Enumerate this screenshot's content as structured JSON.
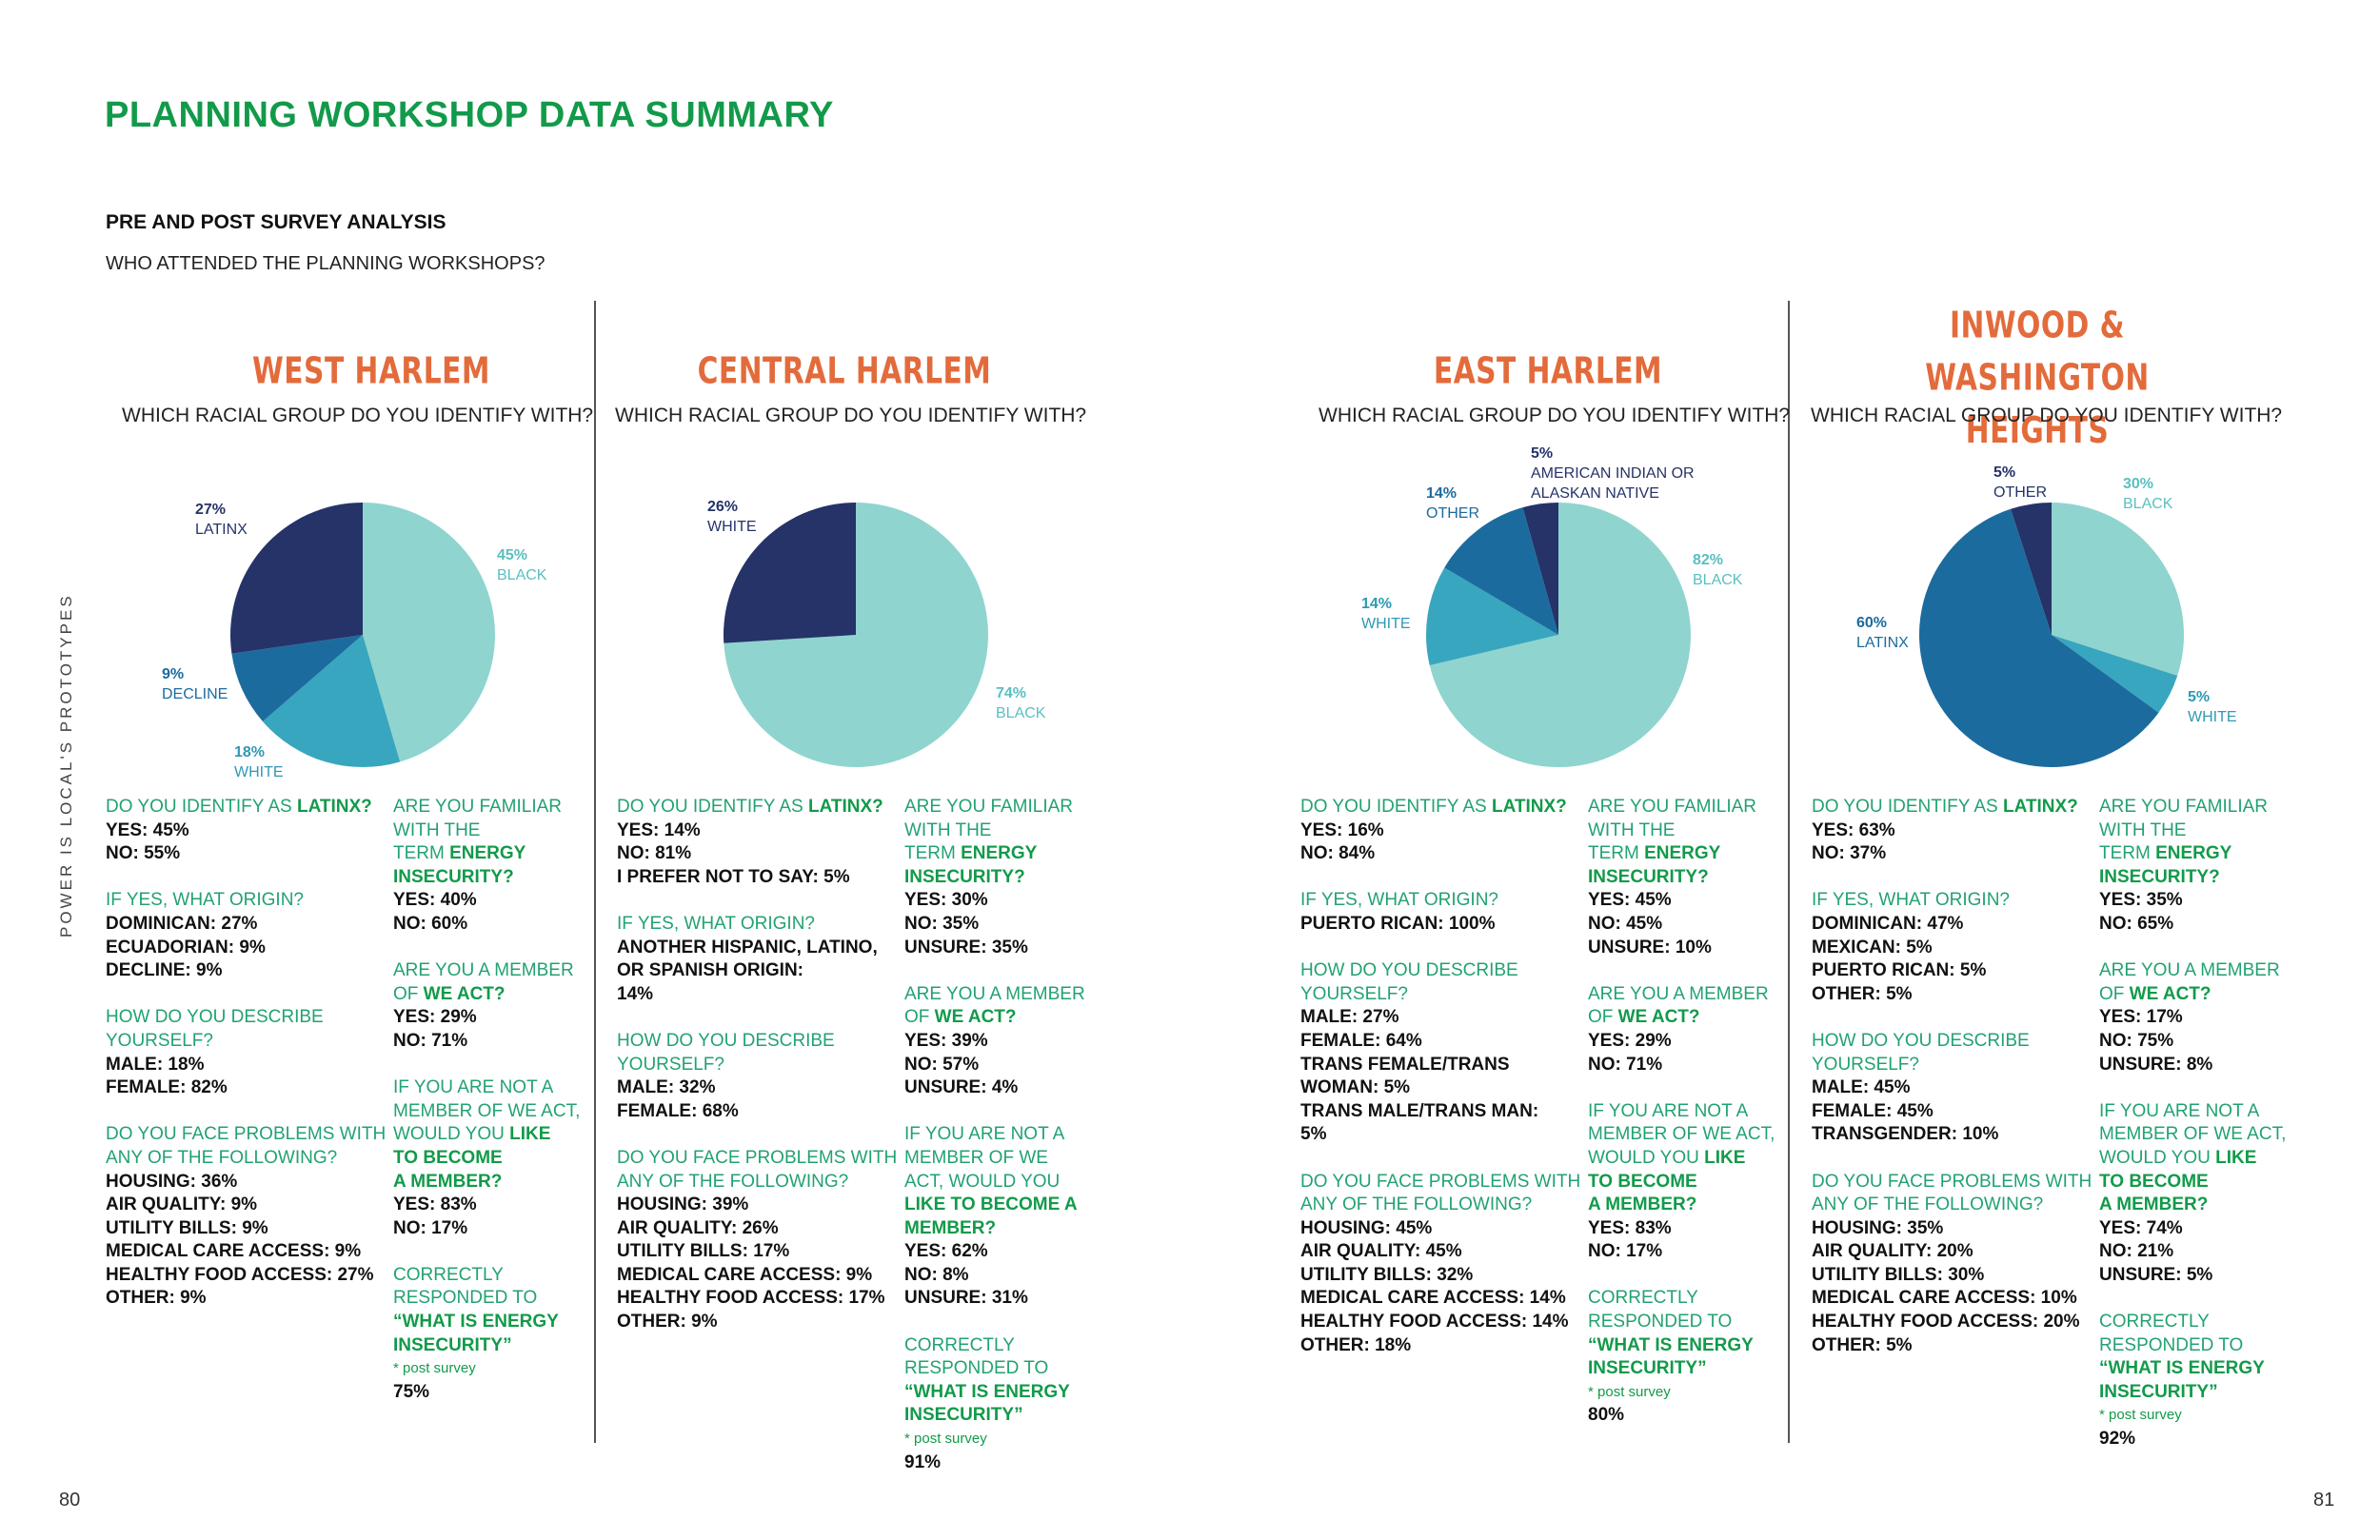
{
  "title": "PLANNING WORKSHOP DATA SUMMARY",
  "subtitle": "PRE AND POST SURVEY ANALYSIS",
  "question": "WHO ATTENDED THE PLANNING WORKSHOPS?",
  "side_label": "POWER IS LOCAL'S PROTOTYPES",
  "page_left": "80",
  "page_right": "81",
  "colors": {
    "title": "#129a4a",
    "region": "#e36b3b",
    "question_text": "#22a271",
    "slice_light": "#8fd4cf",
    "slice_mid": "#38a6be",
    "slice_blue": "#1c6b9e",
    "slice_navy": "#253369"
  },
  "chart_data": [
    {
      "type": "pie",
      "title": "WEST HARLEM",
      "subtitle": "WHICH RACIAL GROUP DO YOU IDENTIFY WITH?",
      "slices": [
        {
          "label": "BLACK",
          "value": 45,
          "pct": "45%",
          "color": "#8fd4cf"
        },
        {
          "label": "WHITE",
          "value": 18,
          "pct": "18%",
          "color": "#38a6be"
        },
        {
          "label": "DECLINE",
          "value": 9,
          "pct": "9%",
          "color": "#1c6b9e"
        },
        {
          "label": "LATINX",
          "value": 27,
          "pct": "27%",
          "color": "#253369"
        }
      ]
    },
    {
      "type": "pie",
      "title": "CENTRAL HARLEM",
      "subtitle": "WHICH RACIAL GROUP DO YOU IDENTIFY WITH?",
      "slices": [
        {
          "label": "BLACK",
          "value": 74,
          "pct": "74%",
          "color": "#8fd4cf"
        },
        {
          "label": "WHITE",
          "value": 26,
          "pct": "26%",
          "color": "#253369"
        }
      ]
    },
    {
      "type": "pie",
      "title": "EAST HARLEM",
      "subtitle": "WHICH RACIAL GROUP DO YOU IDENTIFY WITH?",
      "slices": [
        {
          "label": "BLACK",
          "value": 82,
          "pct": "82%",
          "color": "#8fd4cf"
        },
        {
          "label": "WHITE",
          "value": 14,
          "pct": "14%",
          "color": "#38a6be"
        },
        {
          "label": "OTHER",
          "value": 14,
          "pct": "14%",
          "color": "#1c6b9e"
        },
        {
          "label": "AMERICAN INDIAN OR ALASKAN NATIVE",
          "value": 5,
          "pct": "5%",
          "color": "#253369"
        }
      ]
    },
    {
      "type": "pie",
      "title": "INWOOD & WASHINGTON HEIGHTS",
      "subtitle": "WHICH RACIAL GROUP DO YOU IDENTIFY WITH?",
      "slices": [
        {
          "label": "BLACK",
          "value": 30,
          "pct": "30%",
          "color": "#8fd4cf"
        },
        {
          "label": "WHITE",
          "value": 5,
          "pct": "5%",
          "color": "#38a6be"
        },
        {
          "label": "LATINX",
          "value": 60,
          "pct": "60%",
          "color": "#1c6b9e"
        },
        {
          "label": "OTHER",
          "value": 5,
          "pct": "5%",
          "color": "#253369"
        }
      ]
    }
  ],
  "regions": [
    {
      "name": "WEST HARLEM",
      "left": [
        {
          "q": [
            "DO YOU IDENTIFY AS ",
            "LATINX?"
          ],
          "a": [
            "YES: 45%",
            "NO: 55%"
          ]
        },
        {
          "q": [
            "IF YES, WHAT ORIGIN?"
          ],
          "a": [
            "DOMINICAN: 27%",
            "ECUADORIAN: 9%",
            "DECLINE: 9%"
          ]
        },
        {
          "q": [
            "HOW DO YOU DESCRIBE",
            "YOURSELF?"
          ],
          "a": [
            "MALE: 18%",
            "FEMALE: 82%"
          ]
        },
        {
          "q": [
            "DO YOU FACE PROBLEMS WITH",
            "ANY OF THE FOLLOWING?"
          ],
          "a": [
            "HOUSING: 36%",
            "AIR QUALITY: 9%",
            "UTILITY BILLS: 9%",
            "MEDICAL CARE ACCESS: 9%",
            "HEALTHY FOOD ACCESS: 27%",
            "OTHER: 9%"
          ]
        }
      ],
      "right": [
        {
          "q": [
            "ARE YOU FAMILIAR",
            "WITH THE",
            "TERM ",
            "ENERGY",
            "INSECURITY?"
          ],
          "a": [
            "YES: 40%",
            "NO: 60%"
          ]
        },
        {
          "q": [
            "ARE YOU A MEMBER",
            "OF ",
            "WE ACT?"
          ],
          "a": [
            "YES: 29%",
            "NO: 71%"
          ]
        },
        {
          "q": [
            "IF YOU ARE NOT A",
            "MEMBER OF WE ACT,",
            "WOULD YOU ",
            "LIKE",
            "TO BECOME",
            "A MEMBER?"
          ],
          "a": [
            "YES: 83%",
            "NO: 17%"
          ]
        },
        {
          "q": [
            "CORRECTLY",
            "RESPONDED TO",
            "“WHAT IS ENERGY",
            "INSECURITY”"
          ],
          "note": "* post survey",
          "a": [
            "75%"
          ]
        }
      ]
    },
    {
      "name": "CENTRAL HARLEM",
      "left": [
        {
          "q": [
            "DO YOU IDENTIFY AS ",
            "LATINX?"
          ],
          "a": [
            "YES: 14%",
            "NO: 81%",
            "I PREFER NOT TO SAY: 5%"
          ]
        },
        {
          "q": [
            "IF YES, WHAT ORIGIN?"
          ],
          "a": [
            "ANOTHER HISPANIC, LATINO,",
            "OR SPANISH ORIGIN:",
            "14%"
          ]
        },
        {
          "q": [
            "HOW DO YOU DESCRIBE",
            "YOURSELF?"
          ],
          "a": [
            "MALE: 32%",
            "FEMALE: 68%"
          ]
        },
        {
          "q": [
            "DO YOU FACE PROBLEMS WITH",
            "ANY OF THE FOLLOWING?"
          ],
          "a": [
            "HOUSING: 39%",
            "AIR QUALITY: 26%",
            "UTILITY BILLS: 17%",
            "MEDICAL CARE ACCESS: 9%",
            "HEALTHY FOOD ACCESS: 17%",
            "OTHER: 9%"
          ]
        }
      ],
      "right": [
        {
          "q": [
            "ARE YOU FAMILIAR",
            "WITH THE",
            "TERM ",
            "ENERGY",
            "INSECURITY?"
          ],
          "a": [
            "YES: 30%",
            "NO: 35%",
            "UNSURE: 35%"
          ]
        },
        {
          "q": [
            "ARE YOU A MEMBER",
            "OF ",
            "WE ACT?"
          ],
          "a": [
            "YES: 39%",
            "NO: 57%",
            "UNSURE: 4%"
          ]
        },
        {
          "q": [
            "IF YOU ARE NOT A",
            "MEMBER OF WE",
            "ACT, WOULD YOU",
            "LIKE TO BECOME A",
            "MEMBER?"
          ],
          "a": [
            "YES: 62%",
            "NO: 8%",
            "UNSURE: 31%"
          ]
        },
        {
          "q": [
            "CORRECTLY",
            "RESPONDED TO",
            "“WHAT IS ENERGY",
            "INSECURITY”"
          ],
          "note": "* post survey",
          "a": [
            "91%"
          ]
        }
      ]
    },
    {
      "name": "EAST HARLEM",
      "left": [
        {
          "q": [
            "DO YOU IDENTIFY AS ",
            "LATINX?"
          ],
          "a": [
            "YES: 16%",
            "NO: 84%"
          ]
        },
        {
          "q": [
            "IF YES, WHAT ORIGIN?"
          ],
          "a": [
            "PUERTO RICAN: 100%"
          ]
        },
        {
          "q": [
            "HOW DO YOU DESCRIBE",
            "YOURSELF?"
          ],
          "a": [
            "MALE: 27%",
            "FEMALE: 64%",
            "TRANS FEMALE/TRANS",
            "WOMAN: 5%",
            "TRANS MALE/TRANS MAN:",
            "5%"
          ]
        },
        {
          "q": [
            "DO YOU FACE PROBLEMS WITH",
            "ANY OF THE FOLLOWING?"
          ],
          "a": [
            "HOUSING: 45%",
            "AIR QUALITY: 45%",
            "UTILITY BILLS: 32%",
            "MEDICAL CARE ACCESS: 14%",
            "HEALTHY FOOD ACCESS: 14%",
            "OTHER: 18%"
          ]
        }
      ],
      "right": [
        {
          "q": [
            "ARE YOU FAMILIAR",
            "WITH THE",
            "TERM ",
            "ENERGY",
            "INSECURITY?"
          ],
          "a": [
            "YES: 45%",
            "NO: 45%",
            "UNSURE: 10%"
          ]
        },
        {
          "q": [
            "ARE YOU A MEMBER",
            "OF ",
            "WE ACT?"
          ],
          "a": [
            "YES: 29%",
            "NO: 71%"
          ]
        },
        {
          "q": [
            "IF YOU ARE NOT A",
            "MEMBER OF WE ACT,",
            "WOULD YOU ",
            "LIKE",
            "TO BECOME",
            "A MEMBER?"
          ],
          "a": [
            "YES: 83%",
            "NO: 17%"
          ]
        },
        {
          "q": [
            "CORRECTLY",
            "RESPONDED TO",
            "“WHAT IS ENERGY",
            "INSECURITY”"
          ],
          "note": "* post survey",
          "a": [
            "80%"
          ]
        }
      ]
    },
    {
      "name": "INWOOD & WASHINGTON HEIGHTS",
      "left": [
        {
          "q": [
            "DO YOU IDENTIFY AS ",
            "LATINX?"
          ],
          "a": [
            "YES: 63%",
            "NO: 37%"
          ]
        },
        {
          "q": [
            "IF YES, WHAT ORIGIN?"
          ],
          "a": [
            "DOMINICAN: 47%",
            "MEXICAN: 5%",
            "PUERTO RICAN: 5%",
            "OTHER: 5%"
          ]
        },
        {
          "q": [
            "HOW DO YOU DESCRIBE",
            "YOURSELF?"
          ],
          "a": [
            "MALE: 45%",
            "FEMALE: 45%",
            "TRANSGENDER: 10%"
          ]
        },
        {
          "q": [
            "DO YOU FACE PROBLEMS WITH",
            "ANY OF THE FOLLOWING?"
          ],
          "a": [
            "HOUSING: 35%",
            "AIR QUALITY: 20%",
            "UTILITY BILLS: 30%",
            "MEDICAL CARE ACCESS: 10%",
            "HEALTHY FOOD ACCESS: 20%",
            "OTHER: 5%"
          ]
        }
      ],
      "right": [
        {
          "q": [
            "ARE YOU FAMILIAR",
            "WITH THE",
            "TERM ",
            "ENERGY",
            "INSECURITY?"
          ],
          "a": [
            "YES: 35%",
            "NO: 65%"
          ]
        },
        {
          "q": [
            "ARE YOU A MEMBER",
            "OF ",
            "WE ACT?"
          ],
          "a": [
            "YES: 17%",
            "NO: 75%",
            "UNSURE: 8%"
          ]
        },
        {
          "q": [
            "IF YOU ARE NOT A",
            "MEMBER OF WE ACT,",
            "WOULD YOU ",
            "LIKE",
            "TO BECOME",
            "A MEMBER?"
          ],
          "a": [
            "YES: 74%",
            "NO: 21%",
            "UNSURE: 5%"
          ]
        },
        {
          "q": [
            "CORRECTLY",
            "RESPONDED TO",
            "“WHAT IS ENERGY",
            "INSECURITY”"
          ],
          "note": "* post survey",
          "a": [
            "92%"
          ]
        }
      ]
    }
  ]
}
